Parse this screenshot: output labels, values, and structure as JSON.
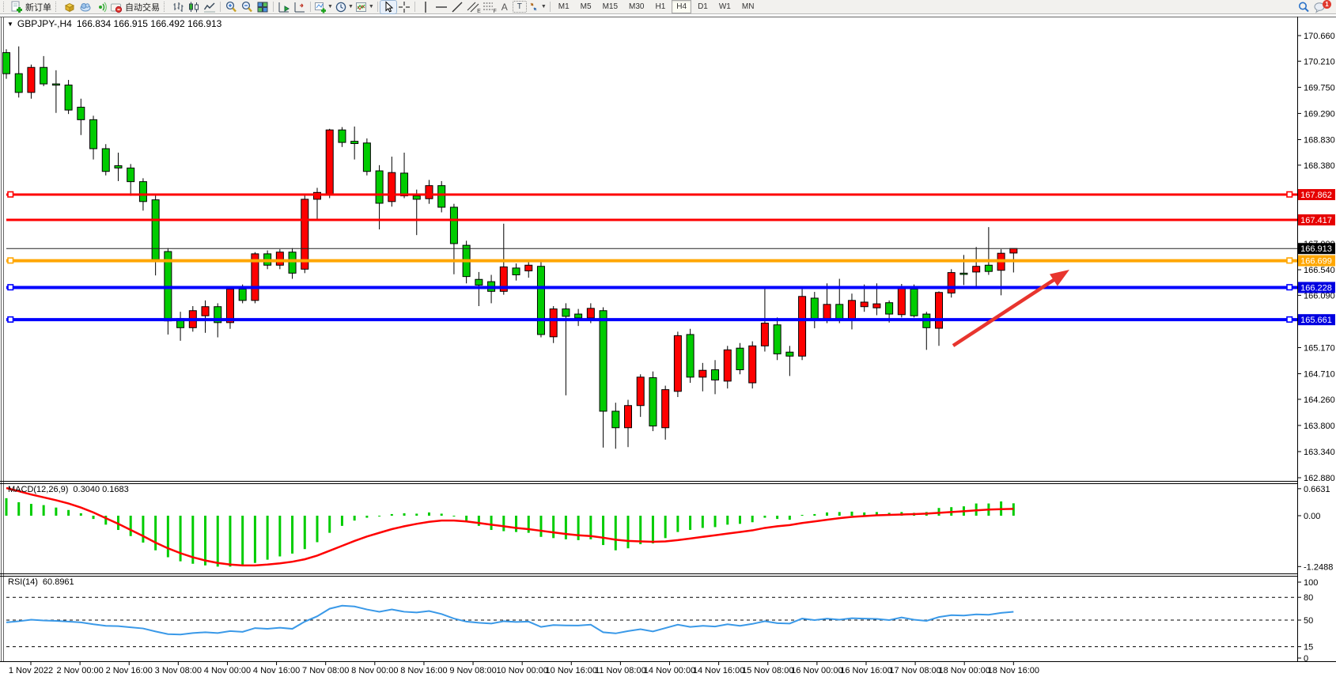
{
  "toolbar": {
    "new_order": "新订单",
    "auto_trading": "自动交易",
    "channel_letter": "E",
    "fibo_letter": "F",
    "text_tool_letter": "A",
    "label_tool_letter": "T",
    "timeframes": [
      "M1",
      "M5",
      "M15",
      "M30",
      "H1",
      "H4",
      "D1",
      "W1",
      "MN"
    ],
    "active_timeframe": "H4",
    "notification_badge": "1"
  },
  "chart": {
    "symbol_period": "GBPJPY-,H4",
    "ohlc_text": "166.834 166.915 166.492 166.913"
  },
  "macd": {
    "name": "MACD(12,26,9)",
    "values": "0.3040 0.1683"
  },
  "rsi": {
    "name": "RSI(14)",
    "value": "60.8961"
  },
  "chart_data": {
    "type": "candlestick",
    "symbol": "GBPJPY-",
    "period": "H4",
    "title": "GBPJPY-,H4 166.834 166.915 166.492 166.913",
    "ylim": [
      162.82,
      170.98
    ],
    "grid": false,
    "colors": {
      "bull": "#fe0000",
      "bear": "#00cc00",
      "wick": "#000000",
      "line_red": "#fe0000",
      "line_orange": "#ffa600",
      "line_blue": "#0000fe",
      "bid_line": "#222222",
      "macd_hist": "#00cc00",
      "macd_signal": "#fe0000",
      "rsi_line": "#3a99e8",
      "arrow": "#e8352e"
    },
    "price_axis_ticks": [
      "170.660",
      "170.210",
      "169.750",
      "169.290",
      "168.830",
      "168.380",
      "167.000",
      "166.540",
      "166.090",
      "165.170",
      "164.710",
      "164.260",
      "163.800",
      "163.340",
      "162.880"
    ],
    "hlines": [
      {
        "price": 167.862,
        "label": "167.862",
        "color": "#fe0000",
        "label_bg": "#e60000",
        "width": 3,
        "handles": true
      },
      {
        "price": 167.417,
        "label": "167.417",
        "color": "#fe0000",
        "label_bg": "#e60000",
        "width": 3,
        "handles": false
      },
      {
        "price": 166.913,
        "label": "166.913",
        "color": "#222222",
        "label_bg": "#000000",
        "width": 1,
        "handles": false
      },
      {
        "price": 166.699,
        "label": "166.699",
        "color": "#ffa600",
        "label_bg": "#ffa600",
        "width": 4,
        "handles": true
      },
      {
        "price": 166.228,
        "label": "166.228",
        "color": "#0000fe",
        "label_bg": "#0000e0",
        "width": 4,
        "handles": true
      },
      {
        "price": 165.661,
        "label": "165.661",
        "color": "#0000fe",
        "label_bg": "#0000e0",
        "width": 4,
        "handles": true
      }
    ],
    "candles": [
      [
        170.36,
        170.42,
        169.9,
        169.99
      ],
      [
        169.99,
        170.47,
        169.57,
        169.66
      ],
      [
        169.66,
        170.15,
        169.55,
        170.1
      ],
      [
        170.1,
        170.3,
        169.77,
        169.81
      ],
      [
        169.81,
        170.05,
        169.3,
        169.79
      ],
      [
        169.79,
        169.88,
        169.28,
        169.35
      ],
      [
        169.4,
        169.55,
        168.91,
        169.18
      ],
      [
        169.18,
        169.25,
        168.48,
        168.67
      ],
      [
        168.67,
        168.75,
        168.2,
        168.27
      ],
      [
        168.37,
        168.6,
        168.1,
        168.33
      ],
      [
        168.33,
        168.4,
        167.84,
        168.09
      ],
      [
        168.09,
        168.15,
        167.58,
        167.74
      ],
      [
        167.77,
        167.85,
        166.44,
        166.72
      ],
      [
        166.86,
        166.92,
        165.4,
        165.64
      ],
      [
        165.68,
        165.8,
        165.29,
        165.52
      ],
      [
        165.52,
        165.9,
        165.45,
        165.82
      ],
      [
        165.73,
        166.0,
        165.43,
        165.89
      ],
      [
        165.89,
        165.95,
        165.35,
        165.61
      ],
      [
        165.61,
        166.25,
        165.5,
        166.2
      ],
      [
        166.2,
        166.28,
        165.95,
        166.0
      ],
      [
        166.0,
        166.85,
        165.95,
        166.82
      ],
      [
        166.82,
        166.88,
        166.55,
        166.62
      ],
      [
        166.62,
        166.9,
        166.55,
        166.85
      ],
      [
        166.85,
        166.92,
        166.38,
        166.48
      ],
      [
        166.55,
        167.85,
        166.48,
        167.78
      ],
      [
        167.78,
        167.98,
        167.4,
        167.9
      ],
      [
        167.86,
        169.02,
        167.8,
        169.0
      ],
      [
        169.0,
        169.05,
        168.7,
        168.78
      ],
      [
        168.8,
        169.06,
        168.48,
        168.76
      ],
      [
        168.77,
        168.85,
        168.2,
        168.27
      ],
      [
        168.28,
        168.38,
        167.25,
        167.71
      ],
      [
        167.74,
        168.53,
        167.65,
        168.25
      ],
      [
        168.24,
        168.6,
        167.8,
        167.84
      ],
      [
        167.84,
        167.95,
        167.15,
        167.78
      ],
      [
        167.79,
        168.12,
        167.7,
        168.02
      ],
      [
        168.02,
        168.1,
        167.55,
        167.64
      ],
      [
        167.64,
        167.7,
        166.46,
        167.0
      ],
      [
        166.97,
        167.05,
        166.3,
        166.42
      ],
      [
        166.37,
        166.5,
        165.9,
        166.27
      ],
      [
        166.33,
        166.45,
        165.95,
        166.16
      ],
      [
        166.16,
        167.35,
        166.1,
        166.59
      ],
      [
        166.57,
        166.65,
        166.35,
        166.45
      ],
      [
        166.52,
        166.7,
        166.4,
        166.62
      ],
      [
        166.6,
        166.7,
        165.35,
        165.4
      ],
      [
        165.36,
        165.9,
        165.25,
        165.85
      ],
      [
        165.85,
        165.95,
        164.33,
        165.72
      ],
      [
        165.76,
        165.85,
        165.55,
        165.69
      ],
      [
        165.69,
        165.95,
        165.6,
        165.86
      ],
      [
        165.82,
        165.88,
        163.41,
        164.05
      ],
      [
        164.05,
        164.2,
        163.39,
        163.76
      ],
      [
        163.76,
        164.25,
        163.42,
        164.15
      ],
      [
        164.15,
        164.7,
        163.95,
        164.65
      ],
      [
        164.64,
        164.75,
        163.7,
        163.79
      ],
      [
        163.76,
        164.5,
        163.55,
        164.43
      ],
      [
        164.4,
        165.45,
        164.3,
        165.38
      ],
      [
        165.4,
        165.5,
        164.55,
        164.65
      ],
      [
        164.65,
        164.9,
        164.4,
        164.77
      ],
      [
        164.78,
        164.95,
        164.35,
        164.6
      ],
      [
        164.58,
        165.2,
        164.45,
        165.13
      ],
      [
        165.16,
        165.25,
        164.7,
        164.78
      ],
      [
        164.55,
        165.28,
        164.45,
        165.2
      ],
      [
        165.2,
        166.23,
        165.1,
        165.6
      ],
      [
        165.57,
        165.7,
        164.95,
        165.06
      ],
      [
        165.09,
        165.2,
        164.67,
        165.02
      ],
      [
        165.02,
        166.23,
        164.95,
        166.07
      ],
      [
        166.04,
        166.15,
        165.51,
        165.67
      ],
      [
        165.67,
        166.3,
        165.6,
        165.93
      ],
      [
        165.93,
        166.38,
        165.6,
        165.66
      ],
      [
        165.66,
        166.12,
        165.49,
        166.0
      ],
      [
        165.89,
        166.28,
        165.8,
        165.97
      ],
      [
        165.87,
        166.3,
        165.74,
        165.94
      ],
      [
        165.96,
        166.0,
        165.61,
        165.76
      ],
      [
        165.75,
        166.29,
        165.7,
        166.22
      ],
      [
        166.2,
        166.28,
        165.7,
        165.73
      ],
      [
        165.76,
        165.8,
        165.13,
        165.52
      ],
      [
        165.51,
        166.16,
        165.2,
        166.14
      ],
      [
        166.13,
        166.55,
        166.05,
        166.49
      ],
      [
        166.48,
        166.8,
        166.27,
        166.46
      ],
      [
        166.5,
        166.94,
        166.24,
        166.6
      ],
      [
        166.62,
        167.29,
        166.45,
        166.51
      ],
      [
        166.53,
        166.9,
        166.09,
        166.83
      ],
      [
        166.834,
        166.915,
        166.492,
        166.913
      ]
    ],
    "macd": {
      "label": "MACD(12,26,9)",
      "current_values": "0.3040 0.1683",
      "axis_ticks": [
        "0.6631",
        "0.00",
        "-1.2488"
      ],
      "hist": [
        0.43,
        0.33,
        0.29,
        0.26,
        0.2,
        0.14,
        0.06,
        -0.08,
        -0.22,
        -0.35,
        -0.5,
        -0.66,
        -0.85,
        -1.02,
        -1.12,
        -1.18,
        -1.22,
        -1.25,
        -1.25,
        -1.22,
        -1.16,
        -1.08,
        -1.0,
        -0.93,
        -0.82,
        -0.65,
        -0.42,
        -0.25,
        -0.12,
        -0.05,
        -0.02,
        0.04,
        0.06,
        0.05,
        0.08,
        0.05,
        -0.02,
        -0.12,
        -0.25,
        -0.35,
        -0.38,
        -0.4,
        -0.42,
        -0.52,
        -0.55,
        -0.58,
        -0.6,
        -0.58,
        -0.72,
        -0.85,
        -0.8,
        -0.7,
        -0.68,
        -0.55,
        -0.4,
        -0.35,
        -0.3,
        -0.28,
        -0.22,
        -0.2,
        -0.16,
        -0.05,
        -0.08,
        -0.1,
        0.02,
        0.04,
        0.08,
        0.09,
        0.1,
        0.08,
        0.09,
        0.07,
        0.09,
        0.07,
        0.09,
        0.19,
        0.21,
        0.23,
        0.3,
        0.3,
        0.35,
        0.304
      ],
      "signal": [
        0.68,
        0.6,
        0.52,
        0.45,
        0.38,
        0.3,
        0.2,
        0.08,
        -0.06,
        -0.2,
        -0.35,
        -0.5,
        -0.66,
        -0.8,
        -0.92,
        -1.02,
        -1.1,
        -1.16,
        -1.2,
        -1.22,
        -1.22,
        -1.2,
        -1.17,
        -1.13,
        -1.07,
        -0.98,
        -0.86,
        -0.74,
        -0.62,
        -0.51,
        -0.42,
        -0.33,
        -0.26,
        -0.2,
        -0.15,
        -0.12,
        -0.12,
        -0.14,
        -0.18,
        -0.22,
        -0.26,
        -0.3,
        -0.33,
        -0.37,
        -0.41,
        -0.45,
        -0.48,
        -0.5,
        -0.54,
        -0.59,
        -0.62,
        -0.63,
        -0.64,
        -0.63,
        -0.6,
        -0.56,
        -0.52,
        -0.48,
        -0.44,
        -0.4,
        -0.36,
        -0.3,
        -0.26,
        -0.23,
        -0.18,
        -0.14,
        -0.1,
        -0.06,
        -0.03,
        -0.01,
        0.01,
        0.02,
        0.03,
        0.04,
        0.05,
        0.07,
        0.09,
        0.11,
        0.13,
        0.15,
        0.16,
        0.1683
      ]
    },
    "rsi": {
      "label": "RSI(14)",
      "current_value": "60.8961",
      "axis_ticks": [
        "100",
        "80",
        "50",
        "15",
        "0"
      ],
      "levels": [
        80,
        50,
        15
      ],
      "values": [
        47,
        48.5,
        50.5,
        49.5,
        49,
        48,
        47,
        44.5,
        42.5,
        42,
        40.5,
        39,
        35,
        31.5,
        31,
        33,
        34,
        33,
        35.5,
        34.5,
        39.5,
        38.5,
        40,
        38.5,
        48,
        55,
        65,
        69,
        68,
        64,
        61,
        64,
        61,
        60,
        62,
        58,
        52,
        48,
        46.5,
        45.5,
        48.5,
        47.5,
        48,
        41,
        43.5,
        43,
        42.8,
        44,
        34,
        32.5,
        35.5,
        38,
        35,
        39.5,
        44,
        41,
        42.5,
        41.5,
        44.5,
        42.5,
        45,
        48.5,
        46,
        45.5,
        52,
        50,
        52,
        50.5,
        52.5,
        52,
        51.5,
        50,
        53.5,
        50.5,
        49,
        54,
        56.5,
        56,
        57.5,
        57,
        59.5,
        60.9
      ]
    },
    "time_labels": [
      "1 Nov 2022",
      "2 Nov 00:00",
      "2 Nov 16:00",
      "3 Nov 08:00",
      "4 Nov 00:00",
      "4 Nov 16:00",
      "7 Nov 08:00",
      "8 Nov 00:00",
      "8 Nov 16:00",
      "9 Nov 08:00",
      "10 Nov 00:00",
      "10 Nov 16:00",
      "11 Nov 08:00",
      "14 Nov 00:00",
      "14 Nov 16:00",
      "15 Nov 08:00",
      "16 Nov 00:00",
      "16 Nov 16:00",
      "17 Nov 08:00",
      "18 Nov 00:00",
      "18 Nov 16:00"
    ],
    "annotation_arrow": {
      "from": [
        1205,
        437
      ],
      "to": [
        1352,
        341
      ]
    }
  }
}
